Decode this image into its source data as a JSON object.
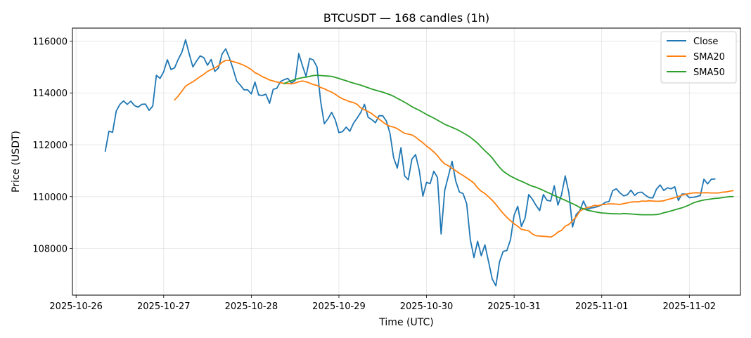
{
  "chart_data": {
    "type": "line",
    "title": "BTCUSDT — 168 candles (1h)",
    "xlabel": "Time (UTC)",
    "ylabel": "Price (USDT)",
    "x_start": "2025-10-26T08:00",
    "x_step_hours": 1,
    "xlim": [
      "2025-10-25T23:00",
      "2025-11-02T14:00"
    ],
    "ylim": [
      106200,
      116500
    ],
    "x_ticks": [
      "2025-10-26",
      "2025-10-27",
      "2025-10-28",
      "2025-10-29",
      "2025-10-30",
      "2025-10-31",
      "2025-11-01",
      "2025-11-02"
    ],
    "y_ticks": [
      108000,
      110000,
      112000,
      114000,
      116000
    ],
    "y_tick_labels": [
      "108000",
      "110000",
      "112000",
      "114000",
      "116000"
    ],
    "grid": true,
    "legend_position": "top-right",
    "series": [
      {
        "name": "Close",
        "color": "#1f77b4",
        "values": [
          111750,
          112520,
          112480,
          113300,
          113560,
          113690,
          113560,
          113680,
          113510,
          113450,
          113560,
          113570,
          113330,
          113490,
          114680,
          114560,
          114820,
          115280,
          114900,
          114970,
          115300,
          115570,
          116050,
          115500,
          115000,
          115230,
          115430,
          115360,
          115070,
          115290,
          114830,
          114960,
          115500,
          115700,
          115350,
          114930,
          114460,
          114300,
          114120,
          114120,
          113960,
          114420,
          113920,
          113900,
          113950,
          113600,
          114140,
          114180,
          114440,
          114510,
          114560,
          114380,
          114480,
          115520,
          115060,
          114640,
          115330,
          115270,
          115000,
          113670,
          112810,
          113000,
          113250,
          112960,
          112470,
          112510,
          112680,
          112520,
          112830,
          113030,
          113250,
          113560,
          113060,
          112970,
          112850,
          113120,
          113120,
          112920,
          112440,
          111500,
          111100,
          111890,
          110800,
          110650,
          111450,
          111620,
          111020,
          110020,
          110550,
          110500,
          110980,
          110740,
          108560,
          110250,
          110800,
          111360,
          110600,
          110180,
          110120,
          109720,
          108350,
          107650,
          108280,
          107720,
          108140,
          107490,
          106820,
          106560,
          107490,
          107890,
          107920,
          108340,
          109280,
          109630,
          108850,
          109170,
          110080,
          109900,
          109660,
          109460,
          110080,
          109860,
          109830,
          110420,
          109670,
          110080,
          110800,
          110150,
          108830,
          109310,
          109460,
          109830,
          109510,
          109560,
          109580,
          109620,
          109680,
          109780,
          109810,
          110230,
          110300,
          110140,
          110030,
          110070,
          110250,
          110050,
          110160,
          110170,
          110050,
          109960,
          109950,
          110290,
          110450,
          110240,
          110340,
          110300,
          110380,
          109850,
          110100,
          110100,
          109960,
          109970,
          110000,
          110040,
          110670,
          110490,
          110670,
          110680
        ]
      },
      {
        "name": "SMA20",
        "color": "#ff7f0e",
        "start_index": 19,
        "values": [
          113730,
          113880,
          114070,
          114260,
          114350,
          114430,
          114530,
          114630,
          114720,
          114830,
          114900,
          114960,
          115050,
          115180,
          115250,
          115250,
          115210,
          115170,
          115120,
          115060,
          114990,
          114900,
          114780,
          114720,
          114630,
          114570,
          114500,
          114460,
          114420,
          114390,
          114370,
          114360,
          114350,
          114380,
          114430,
          114460,
          114430,
          114380,
          114320,
          114290,
          114210,
          114160,
          114090,
          114030,
          113950,
          113850,
          113770,
          113720,
          113660,
          113630,
          113560,
          113420,
          113350,
          113280,
          113200,
          113090,
          112990,
          112880,
          112780,
          112710,
          112680,
          112620,
          112530,
          112440,
          112410,
          112380,
          112300,
          112180,
          112080,
          111950,
          111850,
          111720,
          111580,
          111400,
          111260,
          111190,
          111090,
          111000,
          110900,
          110820,
          110720,
          110630,
          110520,
          110340,
          110210,
          110120,
          109990,
          109860,
          109700,
          109520,
          109350,
          109200,
          109070,
          108950,
          108860,
          108740,
          108710,
          108680,
          108560,
          108490,
          108480,
          108470,
          108460,
          108440,
          108510,
          108630,
          108700,
          108860,
          108930,
          109060,
          109220,
          109440,
          109520,
          109580,
          109610,
          109660,
          109650,
          109690,
          109700,
          109720,
          109720,
          109710,
          109700,
          109730,
          109760,
          109790,
          109800,
          109800,
          109830,
          109820,
          109840,
          109830,
          109820,
          109820,
          109840,
          109890,
          109920,
          109960,
          110000,
          110060,
          110090,
          110120,
          110140,
          110150,
          110140,
          110150,
          110150,
          110140,
          110140,
          110140,
          110170,
          110180,
          110210,
          110230
        ]
      },
      {
        "name": "SMA50",
        "color": "#2ca02c",
        "start_index": 49,
        "values": [
          114360,
          114420,
          114470,
          114520,
          114560,
          114590,
          114610,
          114640,
          114670,
          114680,
          114670,
          114660,
          114650,
          114640,
          114600,
          114560,
          114510,
          114470,
          114420,
          114380,
          114340,
          114300,
          114250,
          114200,
          114150,
          114110,
          114070,
          114030,
          113980,
          113930,
          113870,
          113790,
          113720,
          113640,
          113560,
          113470,
          113400,
          113330,
          113250,
          113170,
          113100,
          113030,
          112950,
          112870,
          112790,
          112730,
          112670,
          112610,
          112540,
          112460,
          112380,
          112290,
          112180,
          112060,
          111910,
          111770,
          111640,
          111490,
          111300,
          111130,
          110980,
          110880,
          110790,
          110720,
          110650,
          110590,
          110530,
          110460,
          110400,
          110360,
          110300,
          110240,
          110170,
          110110,
          110040,
          109980,
          109920,
          109860,
          109790,
          109730,
          109660,
          109580,
          109530,
          109480,
          109450,
          109420,
          109390,
          109370,
          109360,
          109350,
          109340,
          109340,
          109330,
          109350,
          109340,
          109330,
          109320,
          109310,
          109300,
          109300,
          109300,
          109300,
          109310,
          109330,
          109380,
          109410,
          109450,
          109490,
          109530,
          109570,
          109620,
          109680,
          109750,
          109800,
          109840,
          109870,
          109890,
          109910,
          109930,
          109940,
          109960,
          109980,
          110000,
          110000
        ]
      }
    ]
  }
}
